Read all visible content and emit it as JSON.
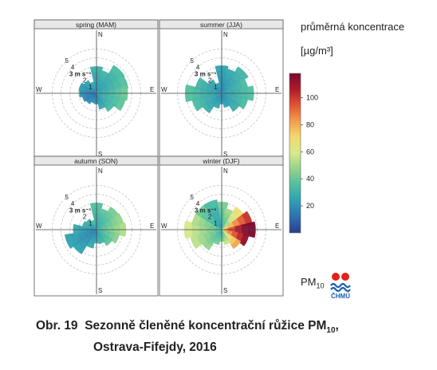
{
  "legend": {
    "title": "průměrná koncentrace",
    "unit": "[µg/m³]",
    "ticks": [
      20,
      40,
      60,
      80,
      100
    ],
    "range": [
      0,
      118
    ]
  },
  "pm_label": {
    "main": "PM",
    "sub": "10"
  },
  "logo_text": "ČHMÚ",
  "caption": {
    "prefix": "Obr. 19",
    "line1": "Sezonně členěné koncentrační růžice PM",
    "line1_sub": "10",
    "line1_end": ",",
    "line2": "Ostrava-Fifejdy, 2016"
  },
  "compass": {
    "n": "N",
    "e": "E",
    "s": "S",
    "w": "W"
  },
  "ring_labels": [
    "1",
    "2",
    "3 m s⁻¹",
    "4",
    "5"
  ],
  "colors": {
    "scale": [
      "#2a3c8f",
      "#2f6fb1",
      "#2f9fb3",
      "#4fbfa1",
      "#94d38c",
      "#d7ea8a",
      "#f3d96f",
      "#f59e4b",
      "#e05533",
      "#b01a2a",
      "#7a0a2e"
    ]
  },
  "chart_data": {
    "type": "polar",
    "title": "",
    "xlabel": "",
    "ylabel": "",
    "r_unit": "m s⁻¹",
    "r_max": 5.5,
    "panels": [
      {
        "title": "spring (MAM)",
        "extent": [
          3.0,
          2.6,
          3.7,
          3.6,
          3.5,
          3.3,
          2.4,
          1.8,
          1.2,
          1.1,
          1.4,
          1.6,
          1.9,
          2.0,
          1.7,
          1.3
        ],
        "conc": [
          26,
          28,
          30,
          32,
          36,
          34,
          30,
          24,
          20,
          18,
          17,
          16,
          18,
          20,
          22,
          24
        ]
      },
      {
        "title": "summer (JJA)",
        "extent": [
          3.1,
          2.8,
          3.5,
          3.0,
          3.6,
          3.0,
          2.4,
          1.6,
          1.2,
          1.7,
          2.6,
          3.4,
          4.1,
          3.0,
          1.8,
          1.2
        ],
        "conc": [
          22,
          24,
          28,
          30,
          32,
          30,
          26,
          22,
          22,
          24,
          26,
          30,
          32,
          28,
          24,
          22
        ]
      },
      {
        "title": "autumn (SON)",
        "extent": [
          3.0,
          2.4,
          3.0,
          3.1,
          3.3,
          2.6,
          2.1,
          1.6,
          1.5,
          2.1,
          3.2,
          3.6,
          2.6,
          1.6,
          1.4,
          1.1
        ],
        "conc": [
          32,
          34,
          38,
          42,
          46,
          40,
          34,
          28,
          26,
          24,
          22,
          22,
          24,
          26,
          28,
          30
        ]
      },
      {
        "title": "winter (DJF)",
        "extent": [
          3.1,
          2.4,
          3.0,
          3.5,
          3.8,
          3.1,
          2.5,
          1.7,
          1.3,
          1.7,
          2.7,
          3.6,
          4.2,
          3.4,
          3.4,
          3.4
        ],
        "conc": [
          38,
          44,
          60,
          90,
          112,
          100,
          72,
          50,
          40,
          38,
          42,
          48,
          52,
          46,
          36,
          30
        ]
      }
    ]
  }
}
